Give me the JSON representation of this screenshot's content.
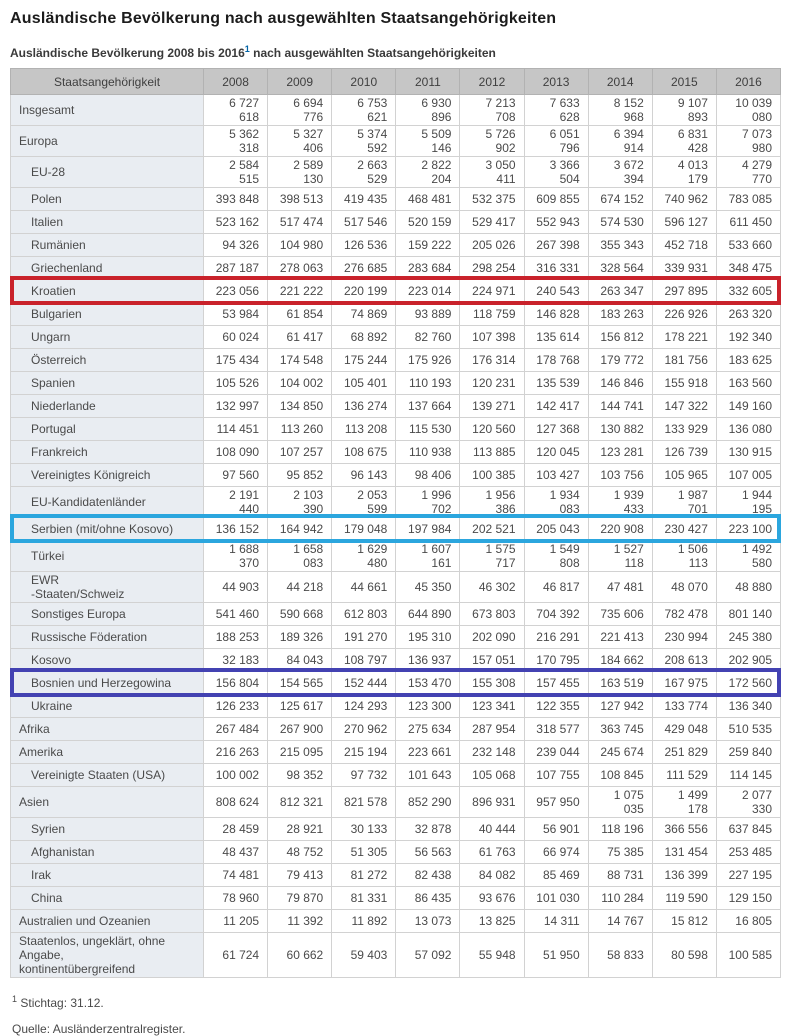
{
  "title": "Ausländische Bevölkerung nach ausgewählten Staatsangehörigkeiten",
  "subtitle": {
    "pre": "Ausländische Bevölkerung 2008 bis 2016",
    "sup": "1",
    "post": " nach ausgewählten Staatsangehörigkeiten"
  },
  "footnote": {
    "sup": "1",
    "text": " Stichtag: 31.12."
  },
  "source": "Quelle: Ausländerzentralregister.",
  "colors": {
    "highlight_red": "#c9222b",
    "highlight_cyan": "#2ba6de",
    "highlight_indigo": "#4342b2",
    "header_bg": "#c6c6c6",
    "label_cell_bg": "#e9edf2",
    "footnote_ref_blue": "#0063a6"
  },
  "chart_data": {
    "type": "table",
    "title": "Ausländische Bevölkerung 2008 bis 2016 nach ausgewählten Staatsangehörigkeiten",
    "columns": [
      "Staatsangehörigkeit",
      "2008",
      "2009",
      "2010",
      "2011",
      "2012",
      "2013",
      "2014",
      "2015",
      "2016"
    ],
    "rows": [
      {
        "label": "Insgesamt",
        "indent": 0,
        "highlight": null,
        "values": [
          "6 727 618",
          "6 694 776",
          "6 753 621",
          "6 930 896",
          "7 213 708",
          "7 633 628",
          "8 152 968",
          "9 107 893",
          "10 039 080"
        ]
      },
      {
        "label": "Europa",
        "indent": 0,
        "highlight": null,
        "values": [
          "5 362 318",
          "5 327 406",
          "5 374 592",
          "5 509 146",
          "5 726 902",
          "6 051 796",
          "6 394 914",
          "6 831 428",
          "7 073 980"
        ]
      },
      {
        "label": "EU-28",
        "indent": 1,
        "highlight": null,
        "values": [
          "2 584 515",
          "2 589 130",
          "2 663 529",
          "2 822 204",
          "3 050 411",
          "3 366 504",
          "3 672 394",
          "4 013 179",
          "4 279 770"
        ]
      },
      {
        "label": "Polen",
        "indent": 1,
        "highlight": null,
        "values": [
          "393 848",
          "398 513",
          "419 435",
          "468 481",
          "532 375",
          "609 855",
          "674 152",
          "740 962",
          "783 085"
        ]
      },
      {
        "label": "Italien",
        "indent": 1,
        "highlight": null,
        "values": [
          "523 162",
          "517 474",
          "517 546",
          "520 159",
          "529 417",
          "552 943",
          "574 530",
          "596 127",
          "611 450"
        ]
      },
      {
        "label": "Rumänien",
        "indent": 1,
        "highlight": null,
        "values": [
          "94 326",
          "104 980",
          "126 536",
          "159 222",
          "205 026",
          "267 398",
          "355 343",
          "452 718",
          "533 660"
        ]
      },
      {
        "label": "Griechenland",
        "indent": 1,
        "highlight": null,
        "values": [
          "287 187",
          "278 063",
          "276 685",
          "283 684",
          "298 254",
          "316 331",
          "328 564",
          "339 931",
          "348 475"
        ]
      },
      {
        "label": "Kroatien",
        "indent": 1,
        "highlight": "red",
        "values": [
          "223 056",
          "221 222",
          "220 199",
          "223 014",
          "224 971",
          "240 543",
          "263 347",
          "297 895",
          "332 605"
        ]
      },
      {
        "label": "Bulgarien",
        "indent": 1,
        "highlight": null,
        "values": [
          "53 984",
          "61 854",
          "74 869",
          "93 889",
          "118 759",
          "146 828",
          "183 263",
          "226 926",
          "263 320"
        ]
      },
      {
        "label": "Ungarn",
        "indent": 1,
        "highlight": null,
        "values": [
          "60 024",
          "61 417",
          "68 892",
          "82 760",
          "107 398",
          "135 614",
          "156 812",
          "178 221",
          "192 340"
        ]
      },
      {
        "label": "Österreich",
        "indent": 1,
        "highlight": null,
        "values": [
          "175 434",
          "174 548",
          "175 244",
          "175 926",
          "176 314",
          "178 768",
          "179 772",
          "181 756",
          "183 625"
        ]
      },
      {
        "label": "Spanien",
        "indent": 1,
        "highlight": null,
        "values": [
          "105 526",
          "104 002",
          "105 401",
          "110 193",
          "120 231",
          "135 539",
          "146 846",
          "155 918",
          "163 560"
        ]
      },
      {
        "label": "Niederlande",
        "indent": 1,
        "highlight": null,
        "values": [
          "132 997",
          "134 850",
          "136 274",
          "137 664",
          "139 271",
          "142 417",
          "144 741",
          "147 322",
          "149 160"
        ]
      },
      {
        "label": "Portugal",
        "indent": 1,
        "highlight": null,
        "values": [
          "114 451",
          "113 260",
          "113 208",
          "115 530",
          "120 560",
          "127 368",
          "130 882",
          "133 929",
          "136 080"
        ]
      },
      {
        "label": "Frankreich",
        "indent": 1,
        "highlight": null,
        "values": [
          "108 090",
          "107 257",
          "108 675",
          "110 938",
          "113 885",
          "120 045",
          "123 281",
          "126 739",
          "130 915"
        ]
      },
      {
        "label": "Vereinigtes Königreich",
        "indent": 1,
        "highlight": null,
        "values": [
          "97 560",
          "95 852",
          "96 143",
          "98 406",
          "100 385",
          "103 427",
          "103 756",
          "105 965",
          "107 005"
        ]
      },
      {
        "label": "EU-Kandidatenländer",
        "indent": 1,
        "highlight": null,
        "values": [
          "2 191 440",
          "2 103 390",
          "2 053 599",
          "1 996 702",
          "1 956 386",
          "1 934 083",
          "1 939 433",
          "1 987 701",
          "1 944 195"
        ]
      },
      {
        "label": "Serbien (mit/ohne Kosovo)",
        "indent": 1,
        "highlight": "cyan",
        "values": [
          "136 152",
          "164 942",
          "179 048",
          "197 984",
          "202 521",
          "205 043",
          "220 908",
          "230 427",
          "223 100"
        ]
      },
      {
        "label": "Türkei",
        "indent": 1,
        "highlight": null,
        "values": [
          "1 688 370",
          "1 658 083",
          "1 629 480",
          "1 607 161",
          "1 575 717",
          "1 549 808",
          "1 527 118",
          "1 506 113",
          "1 492 580"
        ]
      },
      {
        "label": "EWR\n-Staaten/Schweiz",
        "indent": 1,
        "highlight": null,
        "values": [
          "44 903",
          "44 218",
          "44 661",
          "45 350",
          "46 302",
          "46 817",
          "47 481",
          "48 070",
          "48 880"
        ]
      },
      {
        "label": "Sonstiges Europa",
        "indent": 1,
        "highlight": null,
        "values": [
          "541 460",
          "590 668",
          "612 803",
          "644 890",
          "673 803",
          "704 392",
          "735 606",
          "782 478",
          "801 140"
        ]
      },
      {
        "label": "Russische Föderation",
        "indent": 1,
        "highlight": null,
        "values": [
          "188 253",
          "189 326",
          "191 270",
          "195 310",
          "202 090",
          "216 291",
          "221 413",
          "230 994",
          "245 380"
        ]
      },
      {
        "label": "Kosovo",
        "indent": 1,
        "highlight": null,
        "values": [
          "32 183",
          "84 043",
          "108 797",
          "136 937",
          "157 051",
          "170 795",
          "184 662",
          "208 613",
          "202 905"
        ]
      },
      {
        "label": "Bosnien und Herzegowina",
        "indent": 1,
        "highlight": "indigo",
        "values": [
          "156 804",
          "154 565",
          "152 444",
          "153 470",
          "155 308",
          "157 455",
          "163 519",
          "167 975",
          "172 560"
        ]
      },
      {
        "label": "Ukraine",
        "indent": 1,
        "highlight": null,
        "values": [
          "126 233",
          "125 617",
          "124 293",
          "123 300",
          "123 341",
          "122 355",
          "127 942",
          "133 774",
          "136 340"
        ]
      },
      {
        "label": "Afrika",
        "indent": 0,
        "highlight": null,
        "values": [
          "267 484",
          "267 900",
          "270 962",
          "275 634",
          "287 954",
          "318 577",
          "363 745",
          "429 048",
          "510 535"
        ]
      },
      {
        "label": "Amerika",
        "indent": 0,
        "highlight": null,
        "values": [
          "216 263",
          "215 095",
          "215 194",
          "223 661",
          "232 148",
          "239 044",
          "245 674",
          "251 829",
          "259 840"
        ]
      },
      {
        "label": "Vereinigte Staaten (USA)",
        "indent": 1,
        "highlight": null,
        "values": [
          "100 002",
          "98 352",
          "97 732",
          "101 643",
          "105 068",
          "107 755",
          "108 845",
          "111 529",
          "114 145"
        ]
      },
      {
        "label": "Asien",
        "indent": 0,
        "highlight": null,
        "values": [
          "808 624",
          "812 321",
          "821 578",
          "852 290",
          "896 931",
          "957 950",
          "1 075 035",
          "1 499 178",
          "2 077 330"
        ]
      },
      {
        "label": "Syrien",
        "indent": 1,
        "highlight": null,
        "values": [
          "28 459",
          "28 921",
          "30 133",
          "32 878",
          "40 444",
          "56 901",
          "118 196",
          "366 556",
          "637 845"
        ]
      },
      {
        "label": "Afghanistan",
        "indent": 1,
        "highlight": null,
        "values": [
          "48 437",
          "48 752",
          "51 305",
          "56 563",
          "61 763",
          "66 974",
          "75 385",
          "131 454",
          "253 485"
        ]
      },
      {
        "label": "Irak",
        "indent": 1,
        "highlight": null,
        "values": [
          "74 481",
          "79 413",
          "81 272",
          "82 438",
          "84 082",
          "85 469",
          "88 731",
          "136 399",
          "227 195"
        ]
      },
      {
        "label": "China",
        "indent": 1,
        "highlight": null,
        "values": [
          "78 960",
          "79 870",
          "81 331",
          "86 435",
          "93 676",
          "101 030",
          "110 284",
          "119 590",
          "129 150"
        ]
      },
      {
        "label": "Australien und Ozeanien",
        "indent": 0,
        "highlight": null,
        "values": [
          "11 205",
          "11 392",
          "11 892",
          "13 073",
          "13 825",
          "14 311",
          "14 767",
          "15 812",
          "16 805"
        ]
      },
      {
        "label": "Staatenlos, ungeklärt, ohne Angabe,\nkontinentübergreifend",
        "indent": 0,
        "highlight": null,
        "values": [
          "61 724",
          "60 662",
          "59 403",
          "57 092",
          "55 948",
          "51 950",
          "58 833",
          "80 598",
          "100 585"
        ]
      }
    ]
  }
}
